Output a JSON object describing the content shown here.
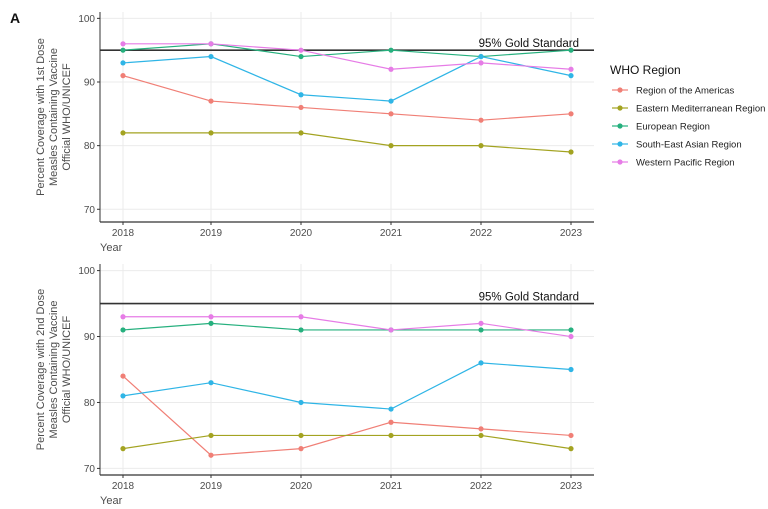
{
  "panel_label": "A",
  "colors": {
    "Region of the Americas": "#F07F76",
    "Eastern Mediterranean Region": "#A3A321",
    "European Region": "#26B07E",
    "South-East Asian Region": "#2FB5E6",
    "Western Pacific Region": "#E67CE6",
    "gold_line": "#333333",
    "grid": "#ebebeb",
    "axis": "#333333"
  },
  "chart_data": [
    {
      "type": "line",
      "x": [
        2018,
        2019,
        2020,
        2021,
        2022,
        2023
      ],
      "xlabel": "Year",
      "ylabel_lines": [
        "Percent Coverage with 1st Dose",
        "Measles Containing Vaccine",
        "Official WHO/UNICEF"
      ],
      "ylim": [
        68,
        101
      ],
      "yticks": [
        70,
        80,
        90,
        100
      ],
      "reference_line": {
        "y": 95,
        "label": "95% Gold Standard"
      },
      "series": [
        {
          "name": "Region of the Americas",
          "values": [
            91,
            87,
            86,
            85,
            84,
            85
          ]
        },
        {
          "name": "Eastern Mediterranean Region",
          "values": [
            82,
            82,
            82,
            80,
            80,
            79
          ]
        },
        {
          "name": "European Region",
          "values": [
            95,
            96,
            94,
            95,
            94,
            95
          ]
        },
        {
          "name": "South-East Asian Region",
          "values": [
            93,
            94,
            88,
            87,
            94,
            91
          ]
        },
        {
          "name": "Western Pacific Region",
          "values": [
            96,
            96,
            95,
            92,
            93,
            92
          ]
        }
      ]
    },
    {
      "type": "line",
      "x": [
        2018,
        2019,
        2020,
        2021,
        2022,
        2023
      ],
      "xlabel": "Year",
      "ylabel_lines": [
        "Percent Coverage with 2nd Dose",
        "Measles Containing Vaccine",
        "Official WHO/UNICEF"
      ],
      "ylim": [
        69,
        101
      ],
      "yticks": [
        70,
        80,
        90,
        100
      ],
      "reference_line": {
        "y": 95,
        "label": "95% Gold Standard"
      },
      "series": [
        {
          "name": "Region of the Americas",
          "values": [
            84,
            72,
            73,
            77,
            76,
            75
          ]
        },
        {
          "name": "Eastern Mediterranean Region",
          "values": [
            73,
            75,
            75,
            75,
            75,
            73
          ]
        },
        {
          "name": "European Region",
          "values": [
            91,
            92,
            91,
            91,
            91,
            91
          ]
        },
        {
          "name": "South-East Asian Region",
          "values": [
            81,
            83,
            80,
            79,
            86,
            85
          ]
        },
        {
          "name": "Western Pacific Region",
          "values": [
            93,
            93,
            93,
            91,
            92,
            90
          ]
        }
      ]
    }
  ],
  "legend": {
    "title": "WHO Region",
    "items": [
      "Region of the Americas",
      "Eastern Mediterranean Region",
      "European Region",
      "South-East Asian Region",
      "Western Pacific Region"
    ]
  }
}
